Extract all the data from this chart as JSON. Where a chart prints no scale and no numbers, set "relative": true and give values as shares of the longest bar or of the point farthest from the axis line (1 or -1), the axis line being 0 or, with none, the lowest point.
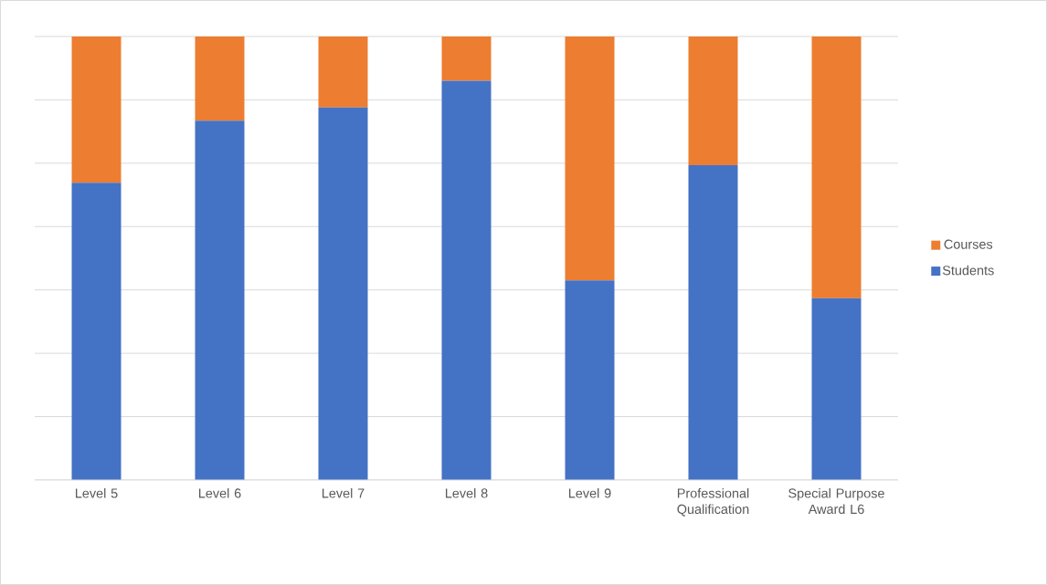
{
  "chart_data": {
    "type": "bar",
    "stacked": true,
    "relative": true,
    "grid": "y",
    "legend": "right",
    "categories": [
      "Level 5",
      "Level 6",
      "Level 7",
      "Level 8",
      "Level 9",
      "Professional Qualification",
      "Special Purpose Award L6"
    ],
    "series": [
      {
        "name": "Students",
        "color": "#4472c4",
        "values": [
          0.67,
          0.81,
          0.84,
          0.9,
          0.45,
          0.71,
          0.41
        ]
      },
      {
        "name": "Courses",
        "color": "#ed7d31",
        "values": [
          0.33,
          0.19,
          0.16,
          0.1,
          0.55,
          0.29,
          0.59
        ]
      }
    ]
  }
}
